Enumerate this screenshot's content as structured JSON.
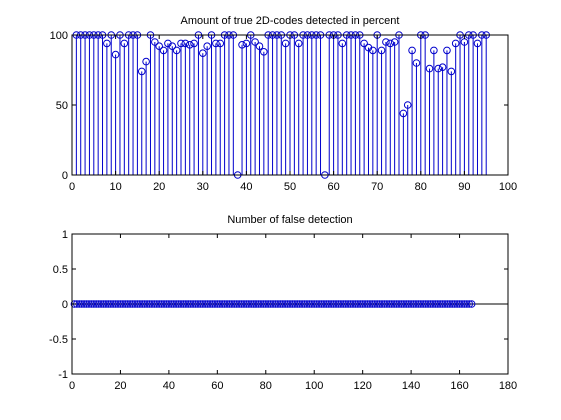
{
  "chart_data": [
    {
      "type": "stem",
      "title": "Amount of true 2D-codes detected in percent",
      "xlim": [
        0,
        100
      ],
      "ylim": [
        0,
        100
      ],
      "xticks": [
        0,
        10,
        20,
        30,
        40,
        50,
        60,
        70,
        80,
        90,
        100
      ],
      "yticks": [
        0,
        50,
        100
      ],
      "grid": false,
      "marker": "circle",
      "color": "#0000cc",
      "x": [
        1,
        2,
        3,
        4,
        5,
        6,
        7,
        8,
        9,
        10,
        11,
        12,
        13,
        14,
        15,
        16,
        17,
        18,
        19,
        20,
        21,
        22,
        23,
        24,
        25,
        26,
        27,
        28,
        29,
        30,
        31,
        32,
        33,
        34,
        35,
        36,
        37,
        38,
        39,
        40,
        41,
        42,
        43,
        44,
        45,
        46,
        47,
        48,
        49,
        50,
        51,
        52,
        53,
        54,
        55,
        56,
        57,
        58,
        59,
        60,
        61,
        62,
        63,
        64,
        65,
        66,
        67,
        68,
        69,
        70,
        71,
        72,
        73,
        74,
        75,
        76,
        77,
        78,
        79,
        80,
        81,
        82,
        83,
        84,
        85,
        86,
        87,
        88,
        89,
        90,
        91,
        92,
        93,
        94,
        95
      ],
      "y": [
        100,
        100,
        100,
        100,
        100,
        100,
        100,
        94,
        100,
        86,
        100,
        94,
        100,
        100,
        100,
        74,
        81,
        100,
        95,
        92,
        89,
        94,
        92,
        89,
        94,
        94,
        93,
        94,
        100,
        87,
        92,
        100,
        94,
        94,
        100,
        100,
        100,
        0,
        93,
        94,
        100,
        95,
        92,
        88,
        100,
        100,
        100,
        100,
        94,
        100,
        100,
        94,
        100,
        100,
        100,
        100,
        100,
        0,
        100,
        100,
        100,
        94,
        100,
        100,
        100,
        100,
        94,
        91,
        89,
        100,
        89,
        95,
        94,
        95,
        100,
        44,
        50,
        89,
        80,
        100,
        100,
        76,
        89,
        76,
        77,
        89,
        74,
        94,
        100,
        95,
        100,
        100,
        94,
        100,
        100
      ]
    },
    {
      "type": "stem",
      "title": "Number of false detection",
      "xlim": [
        0,
        180
      ],
      "ylim": [
        -1,
        1
      ],
      "xticks": [
        0,
        20,
        40,
        60,
        80,
        100,
        120,
        140,
        160,
        180
      ],
      "yticks": [
        -1,
        -0.5,
        0,
        0.5,
        1
      ],
      "tick_labels_y": [
        "-1",
        "-0.5",
        "0",
        "0.5",
        "1"
      ],
      "grid": false,
      "marker": "circle",
      "color": "#0000cc",
      "x_range": [
        1,
        165
      ],
      "value": 0
    }
  ]
}
